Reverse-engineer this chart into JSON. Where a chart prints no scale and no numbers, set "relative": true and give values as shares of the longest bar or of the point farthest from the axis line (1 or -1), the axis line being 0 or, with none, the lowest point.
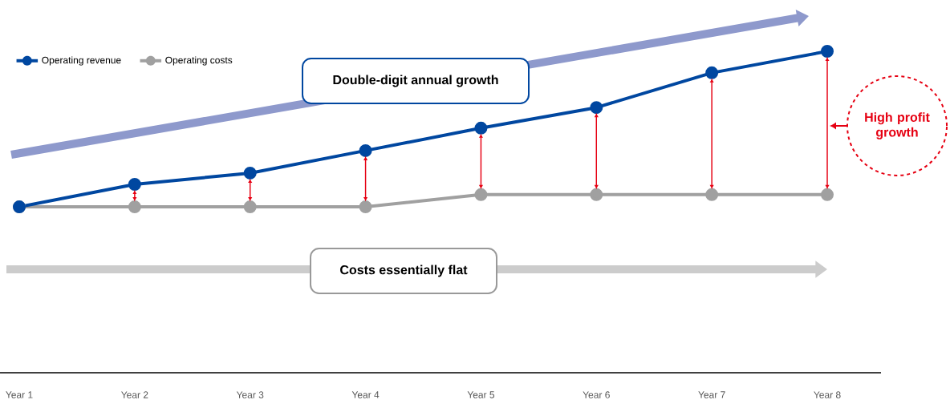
{
  "chart_data": {
    "type": "line",
    "relative": true,
    "categories": [
      "Year 1",
      "Year 2",
      "Year 3",
      "Year 4",
      "Year 5",
      "Year 6",
      "Year 7",
      "Year 8"
    ],
    "series": [
      {
        "name": "Operating revenue",
        "color": "#0047a0",
        "values": [
          0.516,
          0.586,
          0.621,
          0.691,
          0.761,
          0.825,
          0.933,
          1
        ]
      },
      {
        "name": "Operating costs",
        "color": "#a0a0a0",
        "values": [
          0.516,
          0.516,
          0.516,
          0.516,
          0.554,
          0.554,
          0.554,
          0.554
        ]
      }
    ],
    "annotations": [
      "Double-digit annual growth",
      "Costs essentially flat",
      "High profit growth"
    ],
    "legend": "top left",
    "marker": "circle",
    "line_style": "solid"
  }
}
